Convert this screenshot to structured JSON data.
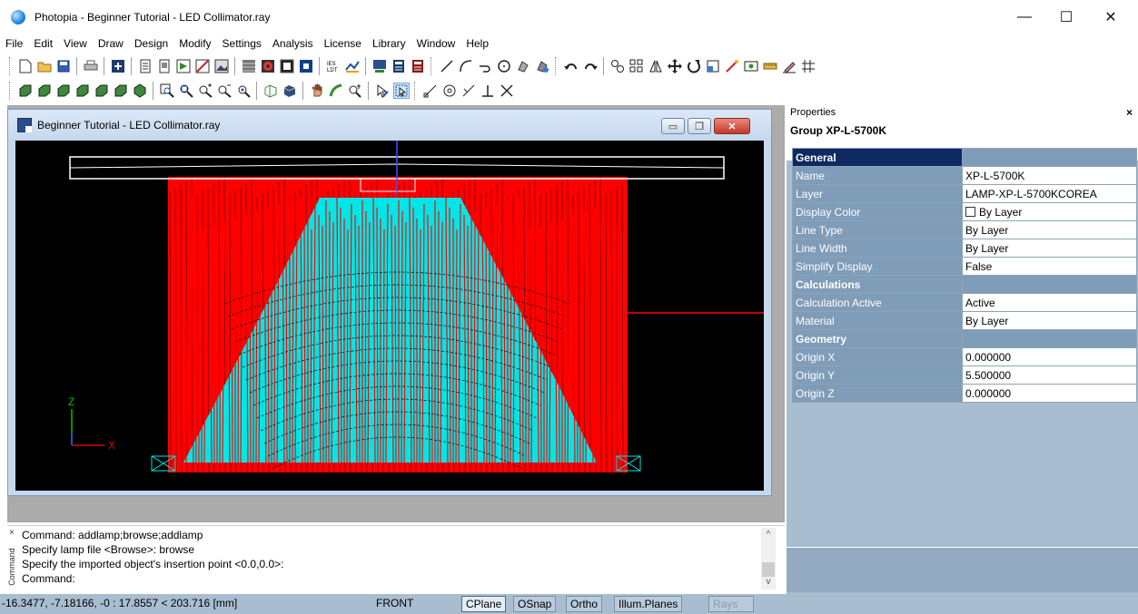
{
  "window": {
    "title": "Photopia - Beginner Tutorial - LED Collimator.ray",
    "minimize_glyph": "—",
    "maximize_glyph": "☐",
    "close_glyph": "✕"
  },
  "menu": [
    "File",
    "Edit",
    "View",
    "Draw",
    "Design",
    "Modify",
    "Settings",
    "Analysis",
    "License",
    "Library",
    "Window",
    "Help"
  ],
  "toolbar1_icons": [
    "new-file-icon",
    "open-folder-icon",
    "save-icon",
    "print-icon",
    "render-icon",
    "page-icon",
    "page2-icon",
    "export-icon",
    "graph-icon",
    "image-icon",
    "grid-icon",
    "target-icon",
    "black-square-icon",
    "blue-square-icon",
    "ies-icon",
    "chart-icon",
    "display-icon",
    "calculator-icon",
    "calculator2-icon",
    "line-icon",
    "arc-icon",
    "curve-icon",
    "circle-icon",
    "lamp-icon",
    "rotate-lamp-icon",
    "undo-icon",
    "redo-icon",
    "group-icon",
    "array-icon",
    "mirror-icon",
    "move-icon",
    "rotate-icon",
    "scale-icon",
    "ray-icon",
    "measure-icon",
    "ruler-icon",
    "pen-icon",
    "hatch-icon"
  ],
  "toolbar2_icons": [
    "view-iso1-icon",
    "view-iso2-icon",
    "view-iso3-icon",
    "view-iso4-icon",
    "view-iso5-icon",
    "view-iso6-icon",
    "view-solid-icon",
    "zoom-window-icon",
    "zoom-extents-icon",
    "zoom-in-icon",
    "zoom-out-icon",
    "zoom-prev-icon",
    "view-3d-icon",
    "shade-icon",
    "pan-icon",
    "orbit-icon",
    "zoom-realtime-icon",
    "select-icon",
    "select-window-icon",
    "snap-end-icon",
    "snap-center-icon",
    "snap-tangent-icon",
    "snap-perpendicular-icon",
    "snap-intersection-icon"
  ],
  "document": {
    "title": "Beginner Tutorial - LED Collimator.ray",
    "min_glyph": "▭",
    "restore_glyph": "❐",
    "close_glyph": "✕"
  },
  "viewport": {
    "axis_z": "Z",
    "axis_x": "X",
    "colors": {
      "background": "#000000",
      "rays": "#ff0000",
      "lens": "#00e5e5",
      "outline": "#ffffff",
      "axis_z": "#00c000",
      "axis_x": "#e00000",
      "axis_origin": "#2b4fff"
    }
  },
  "command": {
    "panel_label": "Command",
    "close_glyph": "×",
    "lines": [
      "Command: addlamp;browse;addlamp",
      "Specify lamp file <Browse>: browse",
      "Specify the imported object's insertion point <0.0,0.0>:",
      "Command:"
    ],
    "scroll_up": "^",
    "scroll_down": "v"
  },
  "status": {
    "coords": "-16.3477, -7.18166, -0 : 17.8557 < 203.716 [mm]",
    "view": "FRONT",
    "buttons": [
      {
        "label": "CPlane",
        "state": "active"
      },
      {
        "label": "OSnap",
        "state": "normal"
      },
      {
        "label": "Ortho",
        "state": "normal"
      },
      {
        "label": "Illum.Planes",
        "state": "normal"
      },
      {
        "label": "Rays",
        "state": "disabled"
      }
    ]
  },
  "properties": {
    "title": "Properties",
    "close_glyph": "×",
    "group_name": "Group XP-L-5700K",
    "sections": [
      {
        "name": "General",
        "rows": [
          {
            "key": "Name",
            "value": "XP-L-5700K"
          },
          {
            "key": "Layer",
            "value": "LAMP-XP-L-5700KCOREA"
          },
          {
            "key": "Display Color",
            "value": "By Layer",
            "checkbox": true
          },
          {
            "key": "Line Type",
            "value": "By Layer"
          },
          {
            "key": "Line Width",
            "value": "By Layer"
          },
          {
            "key": "Simplify Display",
            "value": "False"
          }
        ]
      },
      {
        "name": "Calculations",
        "rows": [
          {
            "key": "Calculation Active",
            "value": "Active"
          },
          {
            "key": "Material",
            "value": "By Layer"
          }
        ]
      },
      {
        "name": "Geometry",
        "rows": [
          {
            "key": "Origin X",
            "value": "0.000000"
          },
          {
            "key": "Origin Y",
            "value": "5.500000"
          },
          {
            "key": "Origin Z",
            "value": "0.000000"
          }
        ]
      }
    ]
  }
}
